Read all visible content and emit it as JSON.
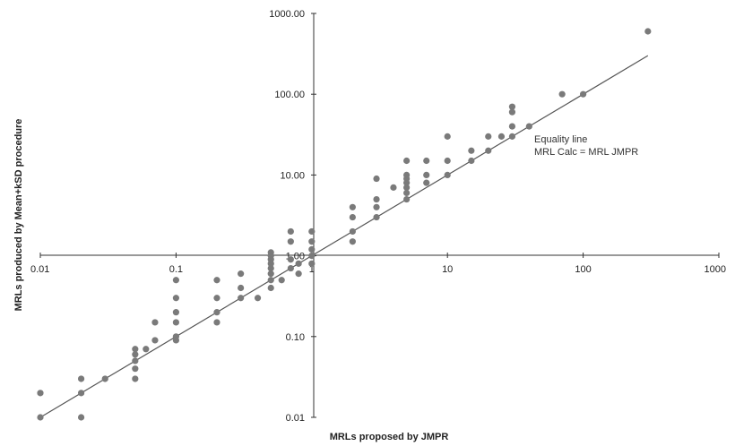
{
  "chart_data": {
    "type": "scatter",
    "xlabel": "MRLs proposed by JMPR",
    "ylabel": "MRLs produced by Mean+kSD procedure",
    "x_scale": "log",
    "y_scale": "log",
    "xlim": [
      0.01,
      1000
    ],
    "ylim": [
      0.01,
      1000
    ],
    "x_ticks": [
      "0.01",
      "0.1",
      "1",
      "10",
      "100",
      "1000"
    ],
    "y_ticks": [
      "0.01",
      "0.10",
      "1.00",
      "10.00",
      "100.00",
      "1000.00"
    ],
    "grid": false,
    "annotation_lines": [
      "Equality line",
      "MRL Calc = MRL JMPR"
    ],
    "equality_line": {
      "x": [
        0.01,
        300
      ],
      "y": [
        0.01,
        300
      ]
    },
    "colors": {
      "points": "#7a7a7a",
      "line": "#555555",
      "axis": "#333333"
    },
    "points": [
      [
        0.01,
        0.01
      ],
      [
        0.01,
        0.02
      ],
      [
        0.02,
        0.01
      ],
      [
        0.02,
        0.02
      ],
      [
        0.02,
        0.03
      ],
      [
        0.03,
        0.03
      ],
      [
        0.05,
        0.03
      ],
      [
        0.05,
        0.04
      ],
      [
        0.05,
        0.05
      ],
      [
        0.05,
        0.06
      ],
      [
        0.05,
        0.07
      ],
      [
        0.06,
        0.07
      ],
      [
        0.07,
        0.09
      ],
      [
        0.07,
        0.15
      ],
      [
        0.1,
        0.09
      ],
      [
        0.1,
        0.1
      ],
      [
        0.1,
        0.15
      ],
      [
        0.1,
        0.2
      ],
      [
        0.1,
        0.3
      ],
      [
        0.1,
        0.5
      ],
      [
        0.2,
        0.15
      ],
      [
        0.2,
        0.2
      ],
      [
        0.2,
        0.3
      ],
      [
        0.2,
        0.5
      ],
      [
        0.3,
        0.3
      ],
      [
        0.3,
        0.4
      ],
      [
        0.3,
        0.6
      ],
      [
        0.4,
        0.3
      ],
      [
        0.5,
        0.4
      ],
      [
        0.5,
        0.5
      ],
      [
        0.5,
        0.6
      ],
      [
        0.5,
        0.7
      ],
      [
        0.5,
        0.8
      ],
      [
        0.5,
        0.9
      ],
      [
        0.5,
        1.0
      ],
      [
        0.5,
        1.1
      ],
      [
        0.6,
        0.5
      ],
      [
        0.7,
        0.7
      ],
      [
        0.7,
        0.9
      ],
      [
        0.7,
        1.5
      ],
      [
        0.7,
        2.0
      ],
      [
        0.8,
        0.6
      ],
      [
        0.8,
        0.8
      ],
      [
        1,
        0.8
      ],
      [
        1,
        1.0
      ],
      [
        1,
        1.2
      ],
      [
        1,
        1.5
      ],
      [
        1,
        2.0
      ],
      [
        2,
        1.5
      ],
      [
        2,
        2.0
      ],
      [
        2,
        3.0
      ],
      [
        2,
        4.0
      ],
      [
        3,
        3.0
      ],
      [
        3,
        4.0
      ],
      [
        3,
        5.0
      ],
      [
        3,
        9.0
      ],
      [
        4,
        7.0
      ],
      [
        5,
        5.0
      ],
      [
        5,
        6.0
      ],
      [
        5,
        7.0
      ],
      [
        5,
        8.0
      ],
      [
        5,
        9.0
      ],
      [
        5,
        10.0
      ],
      [
        5,
        15.0
      ],
      [
        7,
        8.0
      ],
      [
        7,
        10.0
      ],
      [
        7,
        15.0
      ],
      [
        10,
        10.0
      ],
      [
        10,
        15.0
      ],
      [
        10,
        30.0
      ],
      [
        15,
        15.0
      ],
      [
        15,
        20.0
      ],
      [
        20,
        20.0
      ],
      [
        20,
        30.0
      ],
      [
        25,
        30.0
      ],
      [
        30,
        30.0
      ],
      [
        30,
        40.0
      ],
      [
        30,
        60.0
      ],
      [
        30,
        70.0
      ],
      [
        40,
        40.0
      ],
      [
        70,
        100.0
      ],
      [
        100,
        100.0
      ],
      [
        300,
        600.0
      ]
    ]
  }
}
